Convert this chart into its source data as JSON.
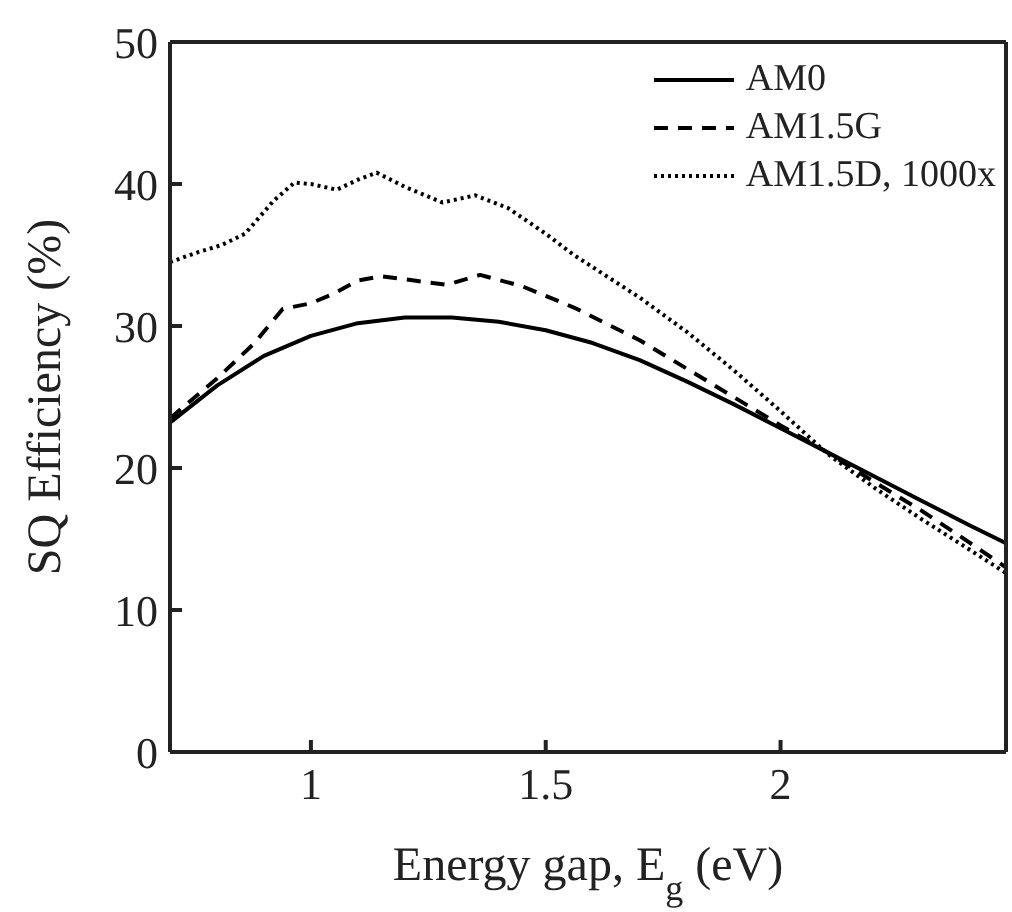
{
  "chart_data": {
    "type": "line",
    "xlabel": "Energy gap, E$_{g}$ (eV)",
    "ylabel": "SQ Efficiency (%)",
    "xlim": [
      0.7,
      2.48
    ],
    "xticks": [
      1,
      1.5,
      2
    ],
    "ylim": [
      0,
      50
    ],
    "yticks": [
      0,
      10,
      20,
      30,
      40,
      50
    ],
    "legend": "top right",
    "series": [
      {
        "name": "AM0",
        "color": "#000000",
        "line_style": "solid",
        "x": [
          0.7,
          0.8,
          0.9,
          1.0,
          1.1,
          1.2,
          1.3,
          1.4,
          1.5,
          1.6,
          1.7,
          1.8,
          1.9,
          2.0,
          2.1,
          2.2,
          2.3,
          2.4,
          2.48
        ],
        "values": [
          23.2,
          25.8,
          27.9,
          29.3,
          30.2,
          30.6,
          30.6,
          30.3,
          29.7,
          28.8,
          27.6,
          26.1,
          24.5,
          22.8,
          21.1,
          19.4,
          17.7,
          16.0,
          14.7
        ]
      },
      {
        "name": "AM1.5G",
        "color": "#000000",
        "line_style": "dashed",
        "x": [
          0.7,
          0.8,
          0.88,
          0.94,
          1.0,
          1.05,
          1.1,
          1.15,
          1.22,
          1.29,
          1.36,
          1.45,
          1.56,
          1.7,
          1.8,
          1.9,
          2.0,
          2.1,
          2.2,
          2.3,
          2.4,
          2.48
        ],
        "values": [
          23.5,
          26.3,
          28.8,
          31.2,
          31.6,
          32.3,
          33.2,
          33.5,
          33.2,
          32.9,
          33.6,
          32.8,
          31.3,
          29.0,
          27.0,
          25.0,
          23.0,
          21.1,
          19.0,
          17.0,
          14.8,
          13.0
        ]
      },
      {
        "name": "AM1.5D, 1000x",
        "color": "#000000",
        "line_style": "dotted",
        "x": [
          0.7,
          0.76,
          0.81,
          0.86,
          0.92,
          0.965,
          1.0,
          1.055,
          1.1,
          1.14,
          1.2,
          1.28,
          1.35,
          1.42,
          1.5,
          1.56,
          1.7,
          1.8,
          1.9,
          2.0,
          2.1,
          2.2,
          2.3,
          2.4,
          2.48
        ],
        "values": [
          34.5,
          35.2,
          35.7,
          36.5,
          38.8,
          40.1,
          40.0,
          39.6,
          40.3,
          40.8,
          39.8,
          38.7,
          39.2,
          38.3,
          36.5,
          35.0,
          32.0,
          29.6,
          26.9,
          24.0,
          21.0,
          18.6,
          16.4,
          14.3,
          12.6
        ]
      }
    ]
  }
}
